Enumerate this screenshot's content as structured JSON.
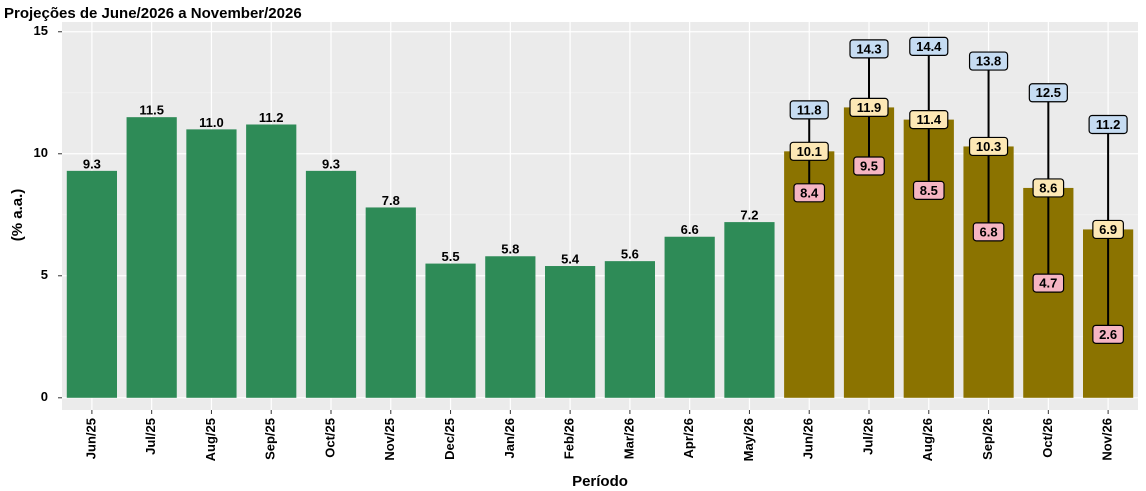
{
  "chart_data": {
    "type": "bar",
    "title": "Projeções de June/2026 a November/2026",
    "x_label": "Período",
    "y_label": "(% a.a.)",
    "categories": [
      "Jun/25",
      "Jul/25",
      "Aug/25",
      "Sep/25",
      "Oct/25",
      "Nov/25",
      "Dec/25",
      "Jan/26",
      "Feb/26",
      "Mar/26",
      "Apr/26",
      "May/26",
      "Jun/26",
      "Jul/26",
      "Aug/26",
      "Sep/26",
      "Oct/26",
      "Nov/26"
    ],
    "values": [
      9.3,
      11.5,
      11.0,
      11.2,
      9.3,
      7.8,
      5.5,
      5.8,
      5.4,
      5.6,
      6.6,
      7.2,
      10.1,
      11.9,
      11.4,
      10.3,
      8.6,
      6.9
    ],
    "value_labels": [
      "9.3",
      "11.5",
      "11.0",
      "11.2",
      "9.3",
      "7.8",
      "5.5",
      "5.8",
      "5.4",
      "5.6",
      "6.6",
      "7.2",
      "10.1",
      "11.9",
      "11.4",
      "10.3",
      "8.6",
      "6.9"
    ],
    "upper": [
      null,
      null,
      null,
      null,
      null,
      null,
      null,
      null,
      null,
      null,
      null,
      null,
      11.8,
      14.3,
      14.4,
      13.8,
      12.5,
      11.2
    ],
    "lower": [
      null,
      null,
      null,
      null,
      null,
      null,
      null,
      null,
      null,
      null,
      null,
      null,
      8.4,
      9.5,
      8.5,
      6.8,
      4.7,
      2.6
    ],
    "color": "#2e8b57",
    "projection_color": "#8b7300",
    "upper_color": "#c6dcf2",
    "value_box_color": "#fde8b5",
    "lower_color": "#f6b5c3",
    "ylim": [
      -0.5,
      15.4
    ],
    "yticks": [
      0,
      5,
      10,
      15
    ],
    "yminor": [
      2.5,
      7.5,
      12.5
    ],
    "grid": true
  }
}
